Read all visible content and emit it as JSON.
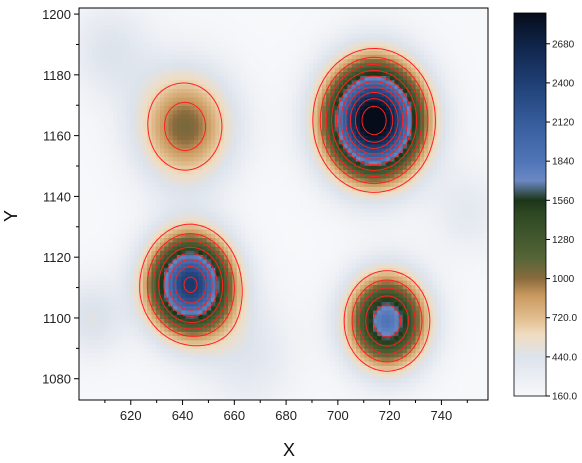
{
  "chart_data": {
    "type": "heatmap",
    "title": "",
    "xlabel": "X",
    "ylabel": "Y",
    "xlim": [
      600,
      758
    ],
    "ylim": [
      1073,
      1202
    ],
    "x_ticks": [
      620,
      640,
      660,
      680,
      700,
      720,
      740
    ],
    "y_ticks": [
      1080,
      1100,
      1120,
      1140,
      1160,
      1180,
      1200
    ],
    "z_range": [
      160,
      2900
    ],
    "colorbar": {
      "ticks": [
        "160.0",
        "440.0",
        "720.0",
        "1000",
        "1280",
        "1560",
        "1840",
        "2120",
        "2400",
        "2680"
      ],
      "stops": [
        {
          "v": 160,
          "color": "#f7f8fa"
        },
        {
          "v": 440,
          "color": "#dde3ec"
        },
        {
          "v": 600,
          "color": "#f0dcc0"
        },
        {
          "v": 720,
          "color": "#e1bd8e"
        },
        {
          "v": 880,
          "color": "#c9995f"
        },
        {
          "v": 1000,
          "color": "#8a6b3e"
        },
        {
          "v": 1140,
          "color": "#566638"
        },
        {
          "v": 1280,
          "color": "#44592e"
        },
        {
          "v": 1470,
          "color": "#2d4722"
        },
        {
          "v": 1560,
          "color": "#1c3518"
        },
        {
          "v": 1700,
          "color": "#6b88c2"
        },
        {
          "v": 1840,
          "color": "#4f75b8"
        },
        {
          "v": 2120,
          "color": "#365c9c"
        },
        {
          "v": 2400,
          "color": "#1f3f74"
        },
        {
          "v": 2680,
          "color": "#0f2347"
        },
        {
          "v": 2900,
          "color": "#060c1a"
        }
      ]
    },
    "peaks": [
      {
        "x": 643,
        "y": 1111,
        "peak": 2450,
        "sigma": 11
      },
      {
        "x": 714,
        "y": 1165,
        "peak": 3100,
        "sigma": 12.5
      },
      {
        "x": 719,
        "y": 1099,
        "peak": 1850,
        "sigma": 10.5
      },
      {
        "x": 641,
        "y": 1163,
        "peak": 1050,
        "sigma": 13
      }
    ],
    "background": [
      {
        "x": 612,
        "y": 1188,
        "amp": 260,
        "sigma": 11
      },
      {
        "x": 665,
        "y": 1088,
        "amp": 230,
        "sigma": 13
      },
      {
        "x": 750,
        "y": 1135,
        "amp": 200,
        "sigma": 10
      },
      {
        "x": 605,
        "y": 1100,
        "amp": 300,
        "sigma": 9
      }
    ],
    "base": 160,
    "contour_levels": [
      650,
      900,
      1150,
      1400,
      1650,
      1900,
      2150,
      2400,
      2650,
      2900
    ],
    "contour_color": "#ff2020"
  }
}
